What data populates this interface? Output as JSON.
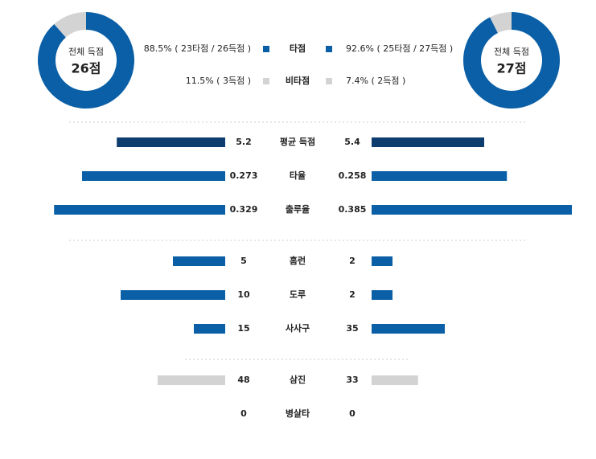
{
  "left": {
    "caption": "전체 득점",
    "total": "26점",
    "slices": [
      88.5,
      11.5
    ]
  },
  "right": {
    "caption": "전체 득점",
    "total": "27점",
    "slices": [
      92.6,
      7.4
    ]
  },
  "legend": [
    {
      "name": "타점",
      "color": "#0a5fa6",
      "left": "88.5% ( 23타점 / 26득점 )",
      "right": "92.6% ( 25타점 / 27득점 )"
    },
    {
      "name": "비타점",
      "color": "#d3d3d3",
      "left": "11.5% ( 3득점 )",
      "right": "7.4% ( 2득점 )"
    }
  ],
  "groups": [
    [
      {
        "name": "평균 득점",
        "left": 5.2,
        "right": 5.4,
        "color": "#0d3c6e"
      },
      {
        "name": "타율",
        "left": 0.273,
        "right": 0.258,
        "color": "#0a5fa6"
      },
      {
        "name": "출루율",
        "left": 0.329,
        "right": 0.385,
        "color": "#0a5fa6"
      }
    ],
    [
      {
        "name": "홈런",
        "left": 5,
        "right": 2,
        "color": "#0a5fa6"
      },
      {
        "name": "도루",
        "left": 10,
        "right": 2,
        "color": "#0a5fa6"
      },
      {
        "name": "사사구",
        "left": 15,
        "right": 35,
        "color": "#0a5fa6"
      }
    ],
    [
      {
        "name": "삼진",
        "left": 48,
        "right": 33,
        "color": "#d3d3d3"
      },
      {
        "name": "병살타",
        "left": 0,
        "right": 0,
        "color": "#d3d3d3"
      }
    ]
  ]
}
